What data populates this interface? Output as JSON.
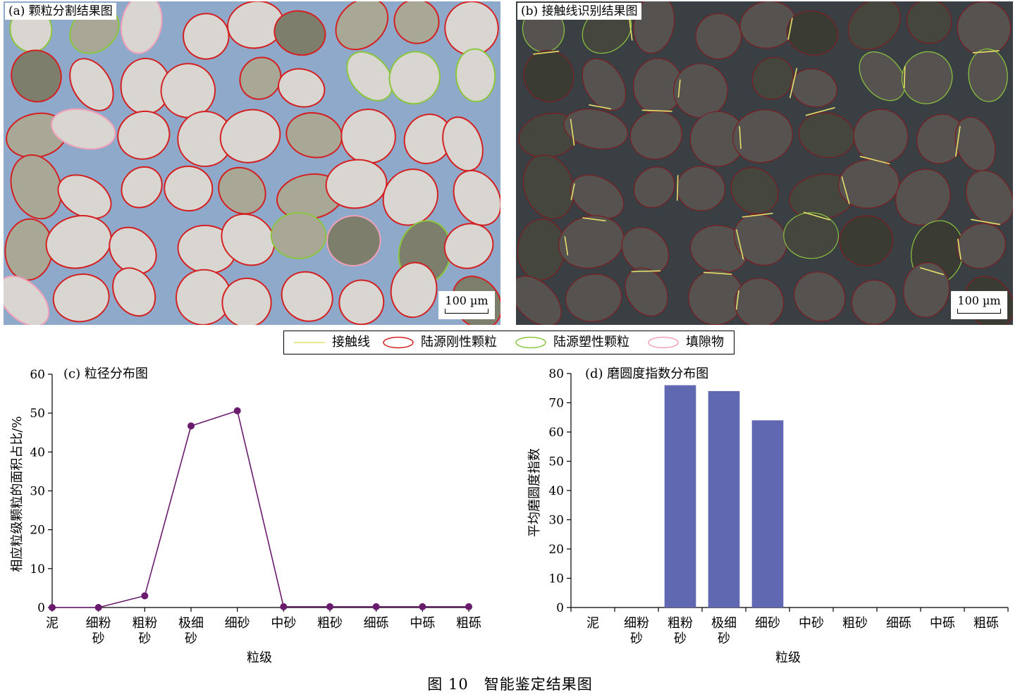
{
  "panel_a": {
    "label": "(a) 颗粒分割结果图",
    "scale": "100 µm"
  },
  "panel_b": {
    "label": "(b) 接触线识别结果图",
    "scale": "100 µm"
  },
  "legend": [
    {
      "label": "接触线",
      "color": "#e6e06a",
      "shape": "line"
    },
    {
      "label": "陆源刚性颗粒",
      "color": "#d42020",
      "shape": "ellipse"
    },
    {
      "label": "陆源塑性颗粒",
      "color": "#8cc63e",
      "shape": "ellipse"
    },
    {
      "label": "填隙物",
      "color": "#f0a0b8",
      "shape": "ellipse"
    }
  ],
  "chart_data": [
    {
      "type": "line",
      "title": "(c) 粒径分布图",
      "xlabel": "粒级",
      "ylabel": "相应粒级颗粒的面积占比/%",
      "categories": [
        "泥",
        "细粉砂",
        "粗粉砂",
        "极细砂",
        "细砂",
        "中砂",
        "粗砂",
        "细砾",
        "中砾",
        "粗砾"
      ],
      "category_lines": [
        [
          "泥"
        ],
        [
          "细粉",
          "砂"
        ],
        [
          "粗粉",
          "砂"
        ],
        [
          "极细",
          "砂"
        ],
        [
          "细砂"
        ],
        [
          "中砂"
        ],
        [
          "粗砂"
        ],
        [
          "细砾"
        ],
        [
          "中砾"
        ],
        [
          "粗砾"
        ]
      ],
      "values": [
        0,
        0,
        3,
        46.7,
        50.6,
        0.2,
        0.2,
        0.2,
        0.2,
        0.2
      ],
      "ylim": [
        0,
        60
      ],
      "yticks": [
        0,
        10,
        20,
        30,
        40,
        50,
        60
      ],
      "color": "#6a1b6e",
      "grid": false
    },
    {
      "type": "bar",
      "title": "(d) 磨圆度指数分布图",
      "xlabel": "粒级",
      "ylabel": "平均磨圆度指数",
      "categories": [
        "泥",
        "细粉砂",
        "粗粉砂",
        "极细砂",
        "细砂",
        "中砂",
        "粗砂",
        "细砾",
        "中砾",
        "粗砾"
      ],
      "category_lines": [
        [
          "泥"
        ],
        [
          "细粉",
          "砂"
        ],
        [
          "粗粉",
          "砂"
        ],
        [
          "极细",
          "砂"
        ],
        [
          "细砂"
        ],
        [
          "中砂"
        ],
        [
          "粗砂"
        ],
        [
          "细砾"
        ],
        [
          "中砾"
        ],
        [
          "粗砾"
        ]
      ],
      "values": [
        0,
        0,
        76,
        74,
        64,
        0,
        0,
        0,
        0,
        0
      ],
      "ylim": [
        0,
        80
      ],
      "yticks": [
        0,
        10,
        20,
        30,
        40,
        50,
        60,
        70,
        80
      ],
      "color": "#6168b2",
      "grid": false
    }
  ],
  "caption": "图 10　智能鉴定结果图"
}
